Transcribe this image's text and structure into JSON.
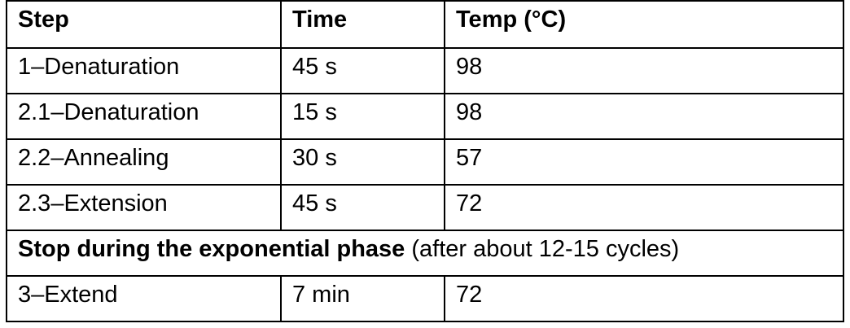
{
  "table": {
    "headers": [
      "Step",
      "Time",
      "Temp (°C)"
    ],
    "rows_before": [
      [
        "1–Denaturation",
        "45 s",
        "98"
      ],
      [
        "2.1–Denaturation",
        "15 s",
        "98"
      ],
      [
        "2.2–Annealing",
        "30 s",
        "57"
      ],
      [
        "2.3–Extension",
        "45 s",
        "72"
      ]
    ],
    "span_row": {
      "bold": "Stop during the exponential phase",
      "normal": " (after about 12-15 cycles)"
    },
    "rows_after": [
      [
        "3–Extend",
        "7 min",
        "72"
      ]
    ]
  }
}
